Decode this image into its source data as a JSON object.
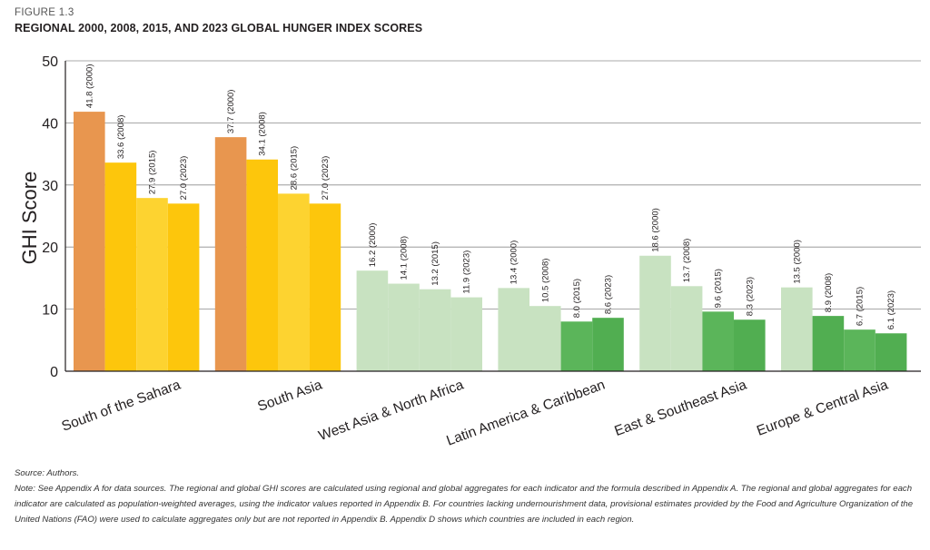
{
  "figure_label": "FIGURE 1.3",
  "title": "REGIONAL 2000, 2008, 2015, AND 2023 GLOBAL HUNGER INDEX SCORES",
  "source": "Source: Authors.",
  "note": "Note: See Appendix A for data sources. The regional and global GHI scores are calculated using regional and global aggregates for each indicator and the formula described in Appendix A. The regional and global aggregates for each indicator are calculated as population-weighted averages, using the indicator values reported in Appendix B. For countries lacking undernourishment data, provisional estimates provided by the Food and Agriculture Organization of the United Nations (FAO) were used to calculate aggregates only but are not reported in Appendix B. Appendix D shows which countries are included in each region.",
  "chart_data": {
    "type": "bar",
    "ylabel": "GHI Score",
    "xlabel": "",
    "ylim": [
      0,
      50
    ],
    "yticks": [
      0,
      10,
      20,
      30,
      40,
      50
    ],
    "grid": true,
    "categories": [
      "South of the Sahara",
      "South Asia",
      "West Asia & North Africa",
      "Latin America & Caribbean",
      "East & Southeast Asia",
      "Europe & Central Asia"
    ],
    "series": [
      {
        "name": "2000",
        "values": [
          41.8,
          37.7,
          16.2,
          13.4,
          18.6,
          13.5
        ],
        "labels": [
          "41.8 (2000)",
          "37.7 (2000)",
          "16.2 (2000)",
          "13.4 (2000)",
          "18.6 (2000)",
          "13.5 (2000)"
        ]
      },
      {
        "name": "2008",
        "values": [
          33.6,
          34.1,
          14.1,
          10.5,
          13.7,
          8.9
        ],
        "labels": [
          "33.6 (2008)",
          "34.1 (2008)",
          "14.1 (2008)",
          "10.5 (2008)",
          "13.7 (2008)",
          "8.9 (2008)"
        ]
      },
      {
        "name": "2015",
        "values": [
          27.9,
          28.6,
          13.2,
          8.0,
          9.6,
          6.7
        ],
        "labels": [
          "27.9 (2015)",
          "28.6 (2015)",
          "13.2 (2015)",
          "8.0 (2015)",
          "9.6 (2015)",
          "6.7 (2015)"
        ]
      },
      {
        "name": "2023",
        "values": [
          27.0,
          27.0,
          11.9,
          8.6,
          8.3,
          6.1
        ],
        "labels": [
          "27.0 (2023)",
          "27.0 (2023)",
          "11.9 (2023)",
          "8.6 (2023)",
          "8.3 (2023)",
          "6.1 (2023)"
        ]
      }
    ],
    "bar_colors": [
      [
        "#e8964f",
        "#fdc60c",
        "#fdd330",
        "#fdc60c"
      ],
      [
        "#e8964f",
        "#fdc60c",
        "#fdd330",
        "#fdc60c"
      ],
      [
        "#c8e2c1",
        "#c8e2c1",
        "#c8e2c1",
        "#c8e2c1"
      ],
      [
        "#c8e2c1",
        "#c8e2c1",
        "#5bb55a",
        "#51ae51"
      ],
      [
        "#c8e2c1",
        "#c8e2c1",
        "#5bb55a",
        "#51ae51"
      ],
      [
        "#c8e2c1",
        "#51ae51",
        "#5bb55a",
        "#51ae51"
      ]
    ]
  }
}
